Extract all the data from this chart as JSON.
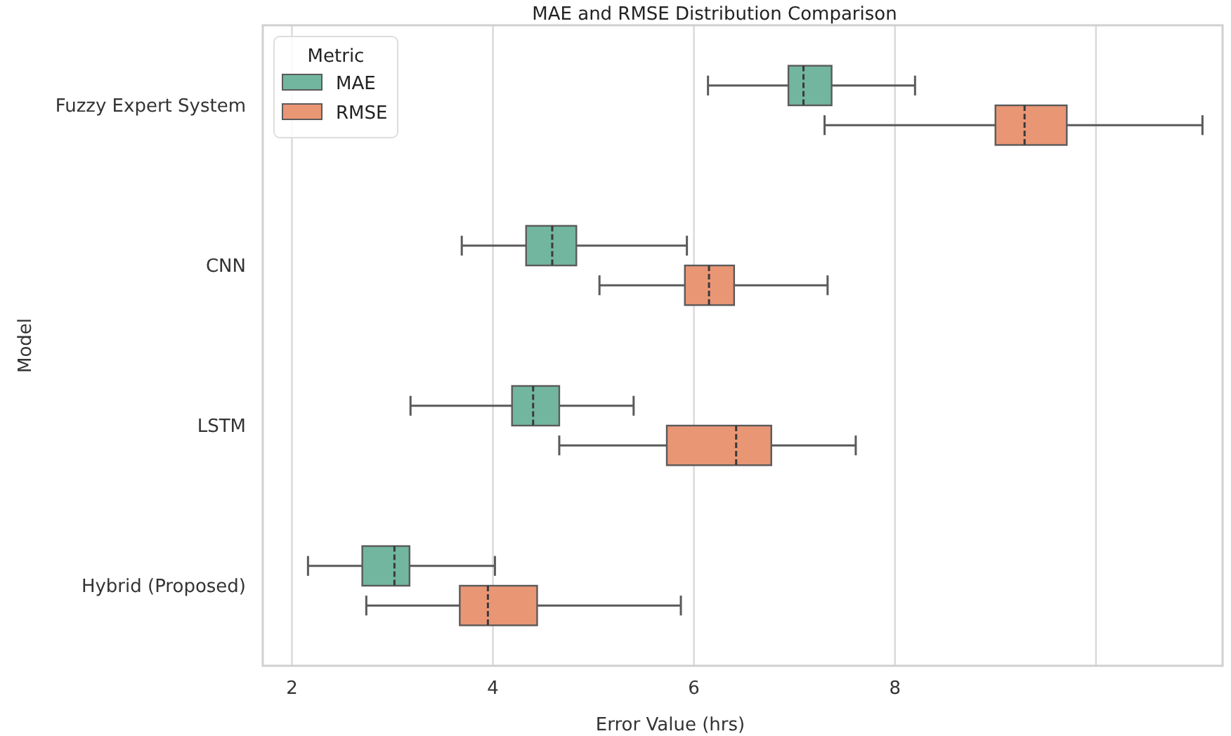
{
  "chart_data": {
    "type": "box",
    "orientation": "horizontal",
    "title": "MAE and RMSE Distribution Comparison",
    "xlabel": "Error Value (hrs)",
    "ylabel": "Model",
    "legend_title": "Metric",
    "legend": "top left",
    "grid": "x",
    "categories": [
      "Fuzzy Expert System",
      "CNN",
      "LSTM",
      "Hybrid (Proposed)"
    ],
    "xlim": [
      1.71,
      11.26
    ],
    "xticks": [
      2,
      4,
      6,
      8,
      {
        "value": 10,
        "label": null
      }
    ],
    "series": [
      {
        "name": "MAE",
        "color": "#72b6a0",
        "boxes": [
          {
            "low": 6.14,
            "q1": 6.94,
            "median": 7.09,
            "q3": 7.37,
            "high": 8.2
          },
          {
            "low": 3.69,
            "q1": 4.33,
            "median": 4.59,
            "q3": 4.83,
            "high": 5.93
          },
          {
            "low": 3.18,
            "q1": 4.19,
            "median": 4.4,
            "q3": 4.66,
            "high": 5.4
          },
          {
            "low": 2.16,
            "q1": 2.7,
            "median": 3.02,
            "q3": 3.17,
            "high": 4.02
          }
        ]
      },
      {
        "name": "RMSE",
        "color": "#e99675",
        "boxes": [
          {
            "low": 7.3,
            "q1": 9.0,
            "median": 9.29,
            "q3": 9.71,
            "high": 11.06
          },
          {
            "low": 5.06,
            "q1": 5.91,
            "median": 6.15,
            "q3": 6.4,
            "high": 7.33
          },
          {
            "low": 4.66,
            "q1": 5.73,
            "median": 6.42,
            "q3": 6.77,
            "high": 7.61
          },
          {
            "low": 2.74,
            "q1": 3.67,
            "median": 3.95,
            "q3": 4.44,
            "high": 5.87
          }
        ]
      }
    ]
  }
}
